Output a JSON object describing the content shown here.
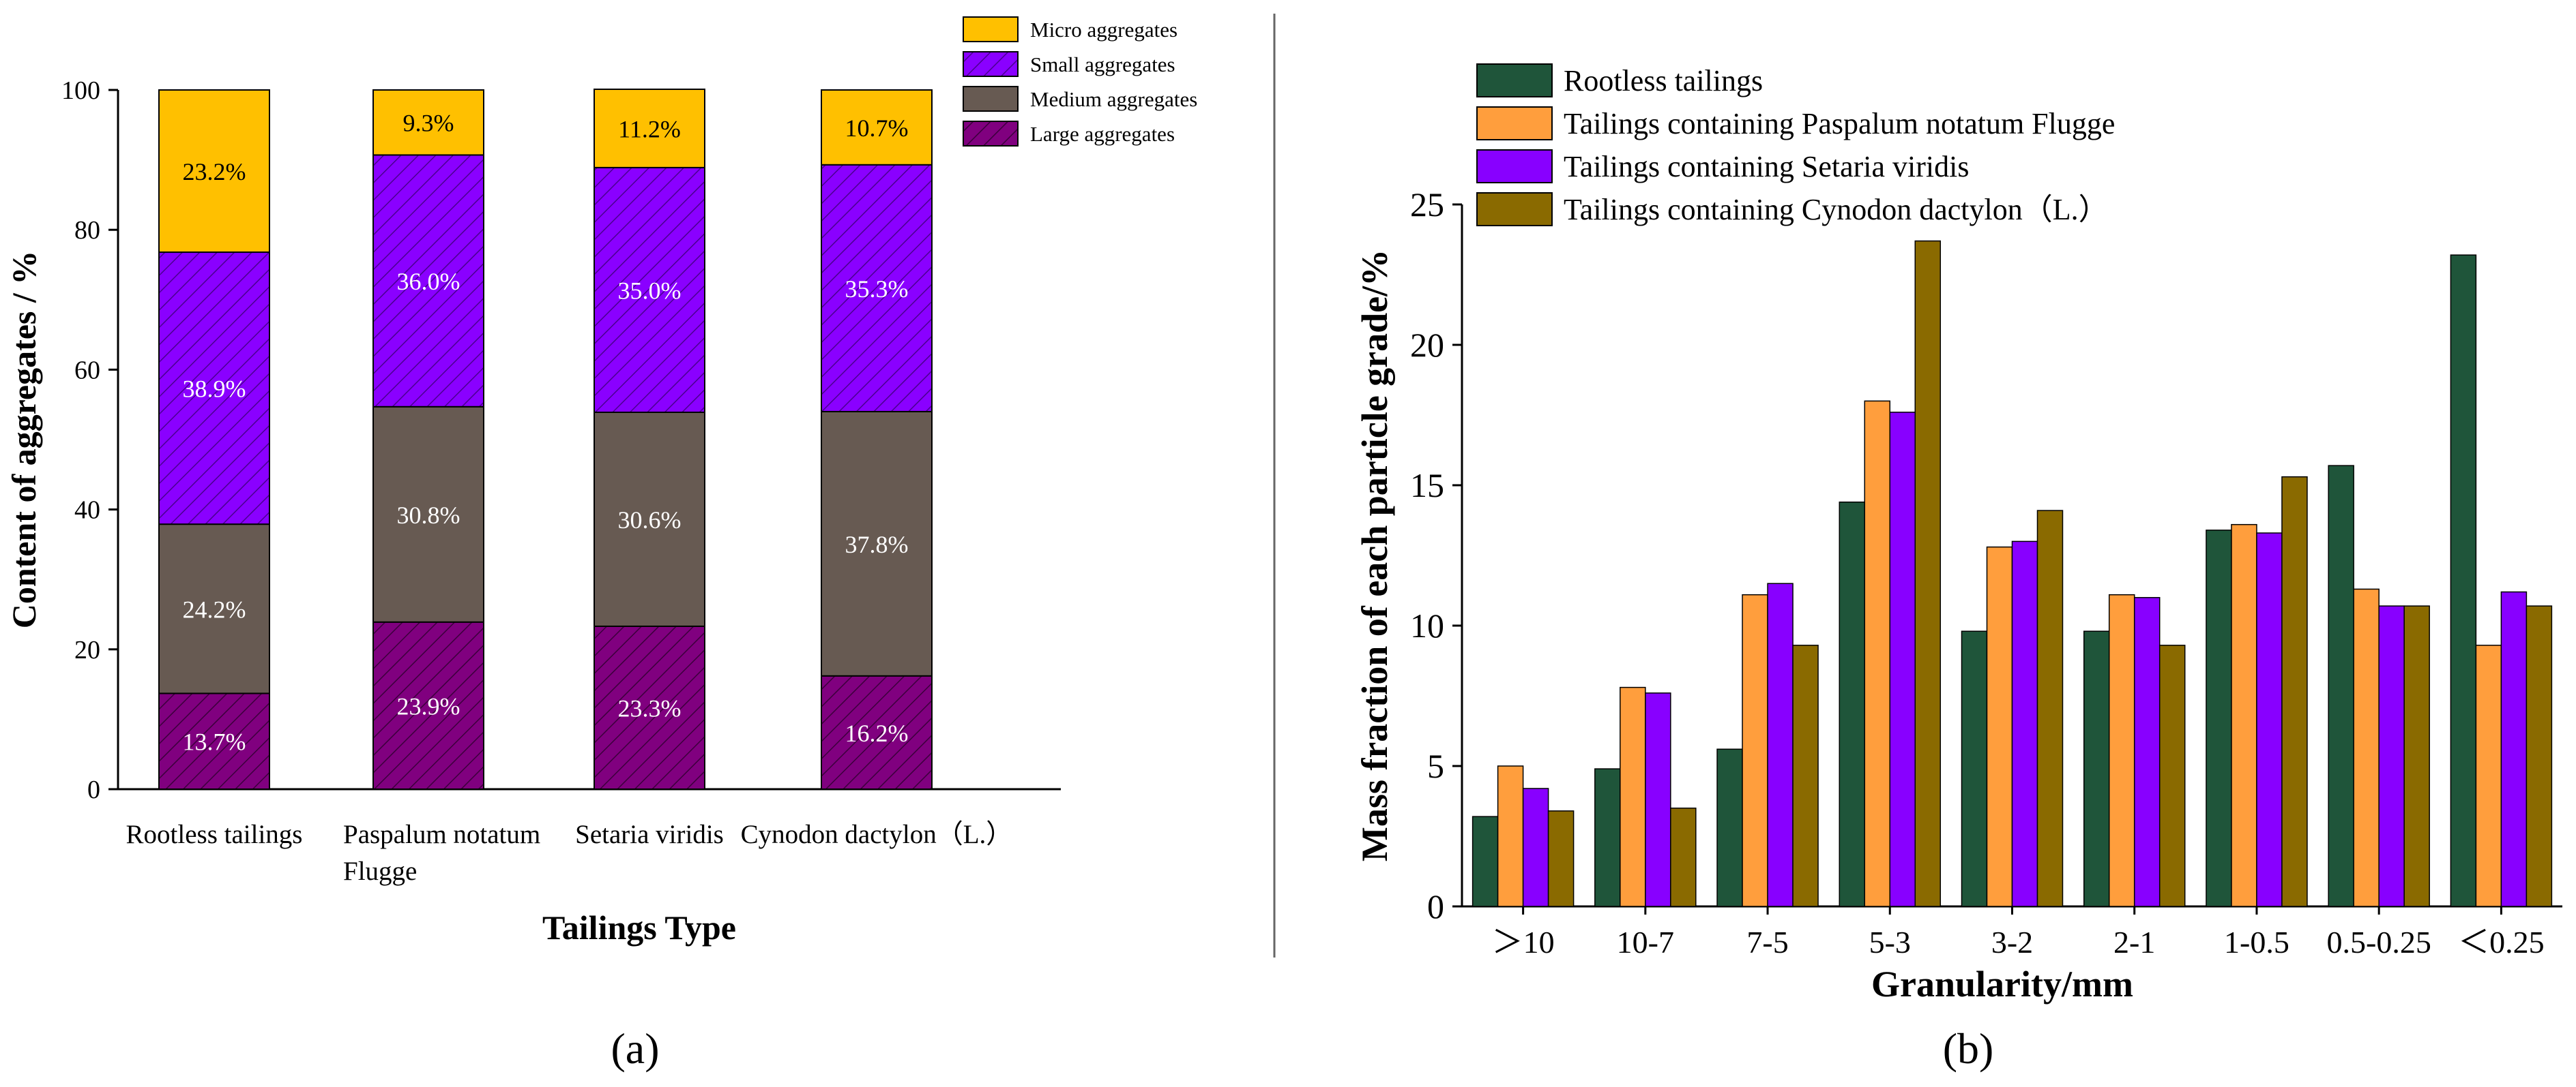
{
  "colors": {
    "micro": "#ffc000",
    "small": "#8a00ff",
    "medium": "#675a52",
    "large": "#80007f",
    "rootless": "#1f553a",
    "paspalum": "#ff9e3d",
    "setaria": "#8800ff",
    "cynodon": "#8a6a00"
  },
  "panels": {
    "a_label": "(a)",
    "b_label": "(b)"
  },
  "chart_data": [
    {
      "type": "bar",
      "stacked": true,
      "ylabel": "Content of aggregates / %",
      "xlabel": "Tailings Type",
      "ylim": [
        0,
        100
      ],
      "yticks": [
        0,
        20,
        40,
        60,
        80,
        100
      ],
      "categories": [
        "Rootless tailings",
        "Paspalum notatum Flugge",
        "Setaria viridis",
        "Cynodon dactylon（L.）"
      ],
      "category_lines": [
        [
          "Rootless tailings"
        ],
        [
          "Paspalum notatum",
          "Flugge"
        ],
        [
          "Setaria viridis"
        ],
        [
          "Cynodon dactylon（L.）"
        ]
      ],
      "legend_position": "top-right",
      "series": [
        {
          "key": "large",
          "name": "Large aggregates",
          "values": [
            13.7,
            23.9,
            23.3,
            16.2
          ],
          "labels": [
            "13.7%",
            "23.9%",
            "23.3%",
            "16.2%"
          ]
        },
        {
          "key": "medium",
          "name": "Medium aggregates",
          "values": [
            24.2,
            30.8,
            30.6,
            37.8
          ],
          "labels": [
            "24.2%",
            "30.8%",
            "30.6%",
            "37.8%"
          ]
        },
        {
          "key": "small",
          "name": "Small aggregates",
          "values": [
            38.9,
            36.0,
            35.0,
            35.3
          ],
          "labels": [
            "38.9%",
            "36.0%",
            "35.0%",
            "35.3%"
          ]
        },
        {
          "key": "micro",
          "name": "Micro aggregates",
          "values": [
            23.2,
            9.3,
            11.2,
            10.7
          ],
          "labels": [
            "23.2%",
            "9.3%",
            "11.2%",
            "10.7%"
          ]
        }
      ],
      "legend_order": [
        "micro",
        "small",
        "medium",
        "large"
      ]
    },
    {
      "type": "bar",
      "stacked": false,
      "ylabel": "Mass fraction of each particle grade/%",
      "xlabel": "Granularity/mm",
      "ylim": [
        0,
        25
      ],
      "yticks": [
        0,
        5,
        10,
        15,
        20,
        25
      ],
      "categories": [
        "＞10",
        "10-7",
        "7-5",
        "5-3",
        "3-2",
        "2-1",
        "1-0.5",
        "0.5-0.25",
        "＜0.25"
      ],
      "legend_position": "top-left",
      "series": [
        {
          "key": "rootless",
          "name": "Rootless tailings",
          "values": [
            3.2,
            4.9,
            5.6,
            14.4,
            9.8,
            9.8,
            13.4,
            15.7,
            23.2
          ]
        },
        {
          "key": "paspalum",
          "name": "Tailings containing Paspalum notatum Flugge",
          "values": [
            5.0,
            7.8,
            11.1,
            18.0,
            12.8,
            11.1,
            13.6,
            11.3,
            9.3
          ]
        },
        {
          "key": "setaria",
          "name": "Tailings containing Setaria viridis",
          "values": [
            4.2,
            7.6,
            11.5,
            17.6,
            13.0,
            11.0,
            13.3,
            10.7,
            11.2
          ]
        },
        {
          "key": "cynodon",
          "name": "Tailings containing Cynodon dactylon（L.）",
          "values": [
            3.4,
            3.5,
            9.3,
            23.7,
            14.1,
            9.3,
            15.3,
            10.7,
            10.7
          ]
        }
      ]
    }
  ]
}
